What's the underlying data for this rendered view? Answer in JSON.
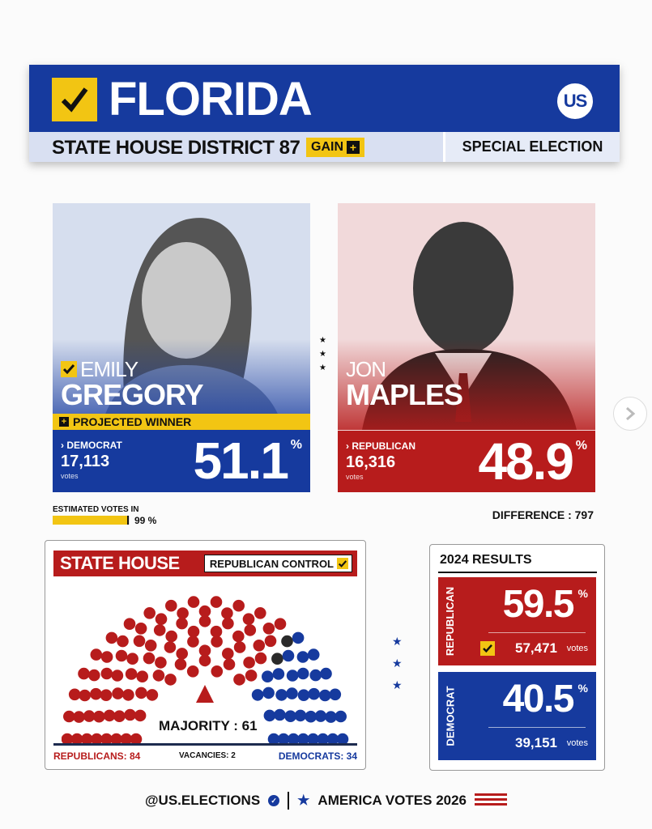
{
  "header": {
    "state": "FLORIDA",
    "logo_text": "US",
    "district": "STATE HOUSE DISTRICT 87",
    "gain_label": "GAIN",
    "election_type": "SPECIAL ELECTION"
  },
  "candidates": [
    {
      "first_name": "EMILY",
      "last_name": "GREGORY",
      "status": "PROJECTED WINNER",
      "party": "DEMOCRAT",
      "votes": "17,113",
      "votes_label": "votes",
      "percent": "51.1",
      "percent_sign": "%",
      "color": "#163a9e"
    },
    {
      "first_name": "JON",
      "last_name": "MAPLES",
      "party": "REPUBLICAN",
      "votes": "16,316",
      "votes_label": "votes",
      "percent": "48.9",
      "percent_sign": "%",
      "color": "#b71c1c"
    }
  ],
  "estimated": {
    "label": "ESTIMATED VOTES IN",
    "value": 99,
    "display": "99 %"
  },
  "difference": "DIFFERENCE : 797",
  "state_house": {
    "title": "STATE HOUSE",
    "control": "REPUBLICAN CONTROL",
    "majority": "MAJORITY : 61",
    "republicans_label": "REPUBLICANS: 84",
    "vacancies_label": "VACANCIES: 2",
    "democrats_label": "DEMOCRATS: 34",
    "seats": {
      "republican": 84,
      "vacant": 2,
      "democrat": 34
    }
  },
  "results_2024": {
    "title": "2024 RESULTS",
    "republican": {
      "label": "REPUBLICAN",
      "percent": "59.5",
      "votes": "57,471",
      "votes_label": "votes"
    },
    "democrat": {
      "label": "DEMOCRAT",
      "percent": "40.5",
      "votes": "39,151",
      "votes_label": "votes"
    },
    "percent_sign": "%"
  },
  "footer": {
    "handle": "@US.ELECTIONS",
    "tagline": "AMERICA VOTES 2026"
  },
  "colors": {
    "republican": "#b71c1c",
    "democrat": "#163a9e",
    "accent": "#f2c513",
    "vacant": "#2a2a2a"
  },
  "icons": [
    "checkmark-icon",
    "plus-icon",
    "chevron-right-icon",
    "star-icon",
    "verified-icon",
    "flag-icon"
  ]
}
